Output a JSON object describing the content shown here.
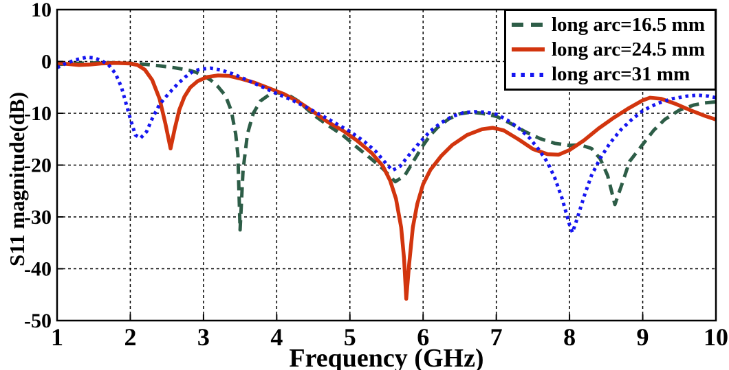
{
  "chart_data": {
    "type": "line",
    "title": "",
    "xlabel": "Frequency (GHz)",
    "ylabel": "S11 magnitude(dB)",
    "xlim": [
      1,
      10
    ],
    "ylim": [
      -50,
      10
    ],
    "xticks": [
      1,
      2,
      3,
      4,
      5,
      6,
      7,
      8,
      9,
      10
    ],
    "yticks": [
      10,
      0,
      -10,
      -20,
      -30,
      -40,
      -50
    ],
    "grid": true,
    "grid_style": "dashed",
    "grid_color": "#000000",
    "axis_color": "#000000",
    "legend_position": "top-right",
    "series": [
      {
        "name": "long arc=16.5 mm",
        "color": "#2d5d47",
        "style": "dashed",
        "line_width": 5,
        "points": [
          [
            1.0,
            -0.6
          ],
          [
            1.2,
            -0.4
          ],
          [
            1.4,
            -0.3
          ],
          [
            1.6,
            -0.25
          ],
          [
            1.8,
            -0.25
          ],
          [
            2.0,
            -0.35
          ],
          [
            2.2,
            -0.55
          ],
          [
            2.4,
            -0.85
          ],
          [
            2.6,
            -1.2
          ],
          [
            2.8,
            -1.7
          ],
          [
            2.9,
            -2.1
          ],
          [
            3.0,
            -2.8
          ],
          [
            3.1,
            -3.6
          ],
          [
            3.2,
            -4.9
          ],
          [
            3.3,
            -6.6
          ],
          [
            3.38,
            -9.5
          ],
          [
            3.44,
            -14
          ],
          [
            3.47,
            -18
          ],
          [
            3.5,
            -32.5
          ],
          [
            3.54,
            -21
          ],
          [
            3.6,
            -14
          ],
          [
            3.68,
            -10
          ],
          [
            3.78,
            -7.6
          ],
          [
            3.9,
            -6.4
          ],
          [
            4.0,
            -6.0
          ],
          [
            4.15,
            -6.4
          ],
          [
            4.3,
            -7.7
          ],
          [
            4.5,
            -10.3
          ],
          [
            4.7,
            -12.3
          ],
          [
            4.9,
            -14.2
          ],
          [
            5.1,
            -16.6
          ],
          [
            5.3,
            -18.9
          ],
          [
            5.45,
            -20.7
          ],
          [
            5.62,
            -23.2
          ],
          [
            5.75,
            -22.0
          ],
          [
            5.9,
            -18.5
          ],
          [
            6.0,
            -16.2
          ],
          [
            6.1,
            -14.2
          ],
          [
            6.2,
            -12.7
          ],
          [
            6.35,
            -11.1
          ],
          [
            6.5,
            -10.1
          ],
          [
            6.65,
            -9.8
          ],
          [
            6.8,
            -10.0
          ],
          [
            7.0,
            -10.6
          ],
          [
            7.2,
            -12.0
          ],
          [
            7.4,
            -13.6
          ],
          [
            7.6,
            -14.9
          ],
          [
            7.8,
            -15.8
          ],
          [
            8.0,
            -16.2
          ],
          [
            8.15,
            -16.1
          ],
          [
            8.3,
            -16.8
          ],
          [
            8.42,
            -18.8
          ],
          [
            8.52,
            -22.0
          ],
          [
            8.62,
            -27.6
          ],
          [
            8.72,
            -23.5
          ],
          [
            8.82,
            -19.3
          ],
          [
            9.0,
            -16.0
          ],
          [
            9.15,
            -13.3
          ],
          [
            9.3,
            -11.2
          ],
          [
            9.5,
            -9.4
          ],
          [
            9.7,
            -8.4
          ],
          [
            9.85,
            -8.0
          ],
          [
            10.0,
            -7.8
          ]
        ]
      },
      {
        "name": "long arc=24.5 mm",
        "color": "#d2350e",
        "style": "solid",
        "line_width": 5.5,
        "points": [
          [
            1.0,
            -0.3
          ],
          [
            1.15,
            -0.5
          ],
          [
            1.3,
            -0.7
          ],
          [
            1.45,
            -0.6
          ],
          [
            1.6,
            -0.4
          ],
          [
            1.8,
            -0.3
          ],
          [
            2.0,
            -0.4
          ],
          [
            2.1,
            -0.7
          ],
          [
            2.2,
            -1.6
          ],
          [
            2.3,
            -3.6
          ],
          [
            2.4,
            -7.2
          ],
          [
            2.48,
            -12.0
          ],
          [
            2.55,
            -16.8
          ],
          [
            2.61,
            -12.8
          ],
          [
            2.67,
            -9.3
          ],
          [
            2.74,
            -6.8
          ],
          [
            2.82,
            -5.0
          ],
          [
            2.92,
            -3.8
          ],
          [
            3.05,
            -3.0
          ],
          [
            3.2,
            -2.7
          ],
          [
            3.35,
            -2.8
          ],
          [
            3.5,
            -3.3
          ],
          [
            3.7,
            -4.1
          ],
          [
            3.9,
            -5.2
          ],
          [
            4.1,
            -6.3
          ],
          [
            4.3,
            -7.8
          ],
          [
            4.5,
            -9.7
          ],
          [
            4.7,
            -11.7
          ],
          [
            4.9,
            -13.3
          ],
          [
            5.1,
            -15.3
          ],
          [
            5.3,
            -17.7
          ],
          [
            5.45,
            -20.2
          ],
          [
            5.55,
            -23.0
          ],
          [
            5.63,
            -26.5
          ],
          [
            5.7,
            -32.0
          ],
          [
            5.74,
            -38.0
          ],
          [
            5.77,
            -45.8
          ],
          [
            5.81,
            -39.0
          ],
          [
            5.86,
            -32.0
          ],
          [
            5.92,
            -27.5
          ],
          [
            6.0,
            -23.7
          ],
          [
            6.1,
            -20.9
          ],
          [
            6.25,
            -18.2
          ],
          [
            6.4,
            -16.1
          ],
          [
            6.6,
            -14.2
          ],
          [
            6.8,
            -13.1
          ],
          [
            6.95,
            -12.8
          ],
          [
            7.1,
            -13.3
          ],
          [
            7.3,
            -15.0
          ],
          [
            7.5,
            -16.9
          ],
          [
            7.7,
            -17.9
          ],
          [
            7.85,
            -18.0
          ],
          [
            8.0,
            -17.1
          ],
          [
            8.2,
            -15.2
          ],
          [
            8.4,
            -12.9
          ],
          [
            8.6,
            -10.9
          ],
          [
            8.8,
            -9.1
          ],
          [
            9.0,
            -7.5
          ],
          [
            9.1,
            -7.0
          ],
          [
            9.25,
            -7.2
          ],
          [
            9.45,
            -8.2
          ],
          [
            9.65,
            -9.4
          ],
          [
            9.85,
            -10.5
          ],
          [
            10.0,
            -11.2
          ]
        ]
      },
      {
        "name": "long arc=31 mm",
        "color": "#1515f0",
        "style": "dotted",
        "line_width": 5,
        "points": [
          [
            1.0,
            -1.2
          ],
          [
            1.1,
            -0.5
          ],
          [
            1.25,
            0.3
          ],
          [
            1.4,
            0.8
          ],
          [
            1.5,
            0.7
          ],
          [
            1.6,
            0.2
          ],
          [
            1.7,
            -0.6
          ],
          [
            1.8,
            -2.4
          ],
          [
            1.88,
            -5.0
          ],
          [
            1.95,
            -8.5
          ],
          [
            2.0,
            -11.0
          ],
          [
            2.07,
            -14.2
          ],
          [
            2.14,
            -14.8
          ],
          [
            2.22,
            -13.6
          ],
          [
            2.3,
            -11.0
          ],
          [
            2.4,
            -8.3
          ],
          [
            2.5,
            -6.6
          ],
          [
            2.57,
            -5.5
          ],
          [
            2.65,
            -4.3
          ],
          [
            2.75,
            -3.0
          ],
          [
            2.85,
            -2.0
          ],
          [
            2.95,
            -1.5
          ],
          [
            3.1,
            -1.3
          ],
          [
            3.25,
            -1.7
          ],
          [
            3.4,
            -2.4
          ],
          [
            3.6,
            -3.6
          ],
          [
            3.8,
            -4.9
          ],
          [
            4.0,
            -6.2
          ],
          [
            4.2,
            -7.4
          ],
          [
            4.4,
            -8.8
          ],
          [
            4.6,
            -10.3
          ],
          [
            4.8,
            -11.9
          ],
          [
            5.0,
            -13.5
          ],
          [
            5.2,
            -15.5
          ],
          [
            5.35,
            -17.3
          ],
          [
            5.5,
            -19.8
          ],
          [
            5.58,
            -21.0
          ],
          [
            5.68,
            -20.3
          ],
          [
            5.8,
            -18.2
          ],
          [
            5.95,
            -15.7
          ],
          [
            6.1,
            -13.4
          ],
          [
            6.25,
            -11.8
          ],
          [
            6.4,
            -10.6
          ],
          [
            6.55,
            -9.9
          ],
          [
            6.7,
            -9.7
          ],
          [
            6.85,
            -9.8
          ],
          [
            7.0,
            -10.2
          ],
          [
            7.15,
            -11.3
          ],
          [
            7.3,
            -12.8
          ],
          [
            7.45,
            -14.7
          ],
          [
            7.58,
            -17.0
          ],
          [
            7.7,
            -19.5
          ],
          [
            7.8,
            -22.5
          ],
          [
            7.9,
            -26.5
          ],
          [
            8.0,
            -31.5
          ],
          [
            8.04,
            -33.0
          ],
          [
            8.1,
            -30.5
          ],
          [
            8.2,
            -26.0
          ],
          [
            8.3,
            -22.0
          ],
          [
            8.42,
            -18.7
          ],
          [
            8.55,
            -15.8
          ],
          [
            8.7,
            -13.2
          ],
          [
            8.85,
            -11.2
          ],
          [
            9.0,
            -9.5
          ],
          [
            9.2,
            -8.1
          ],
          [
            9.4,
            -7.2
          ],
          [
            9.6,
            -6.7
          ],
          [
            9.75,
            -6.5
          ],
          [
            9.9,
            -6.7
          ],
          [
            10.0,
            -7.0
          ]
        ]
      }
    ]
  }
}
